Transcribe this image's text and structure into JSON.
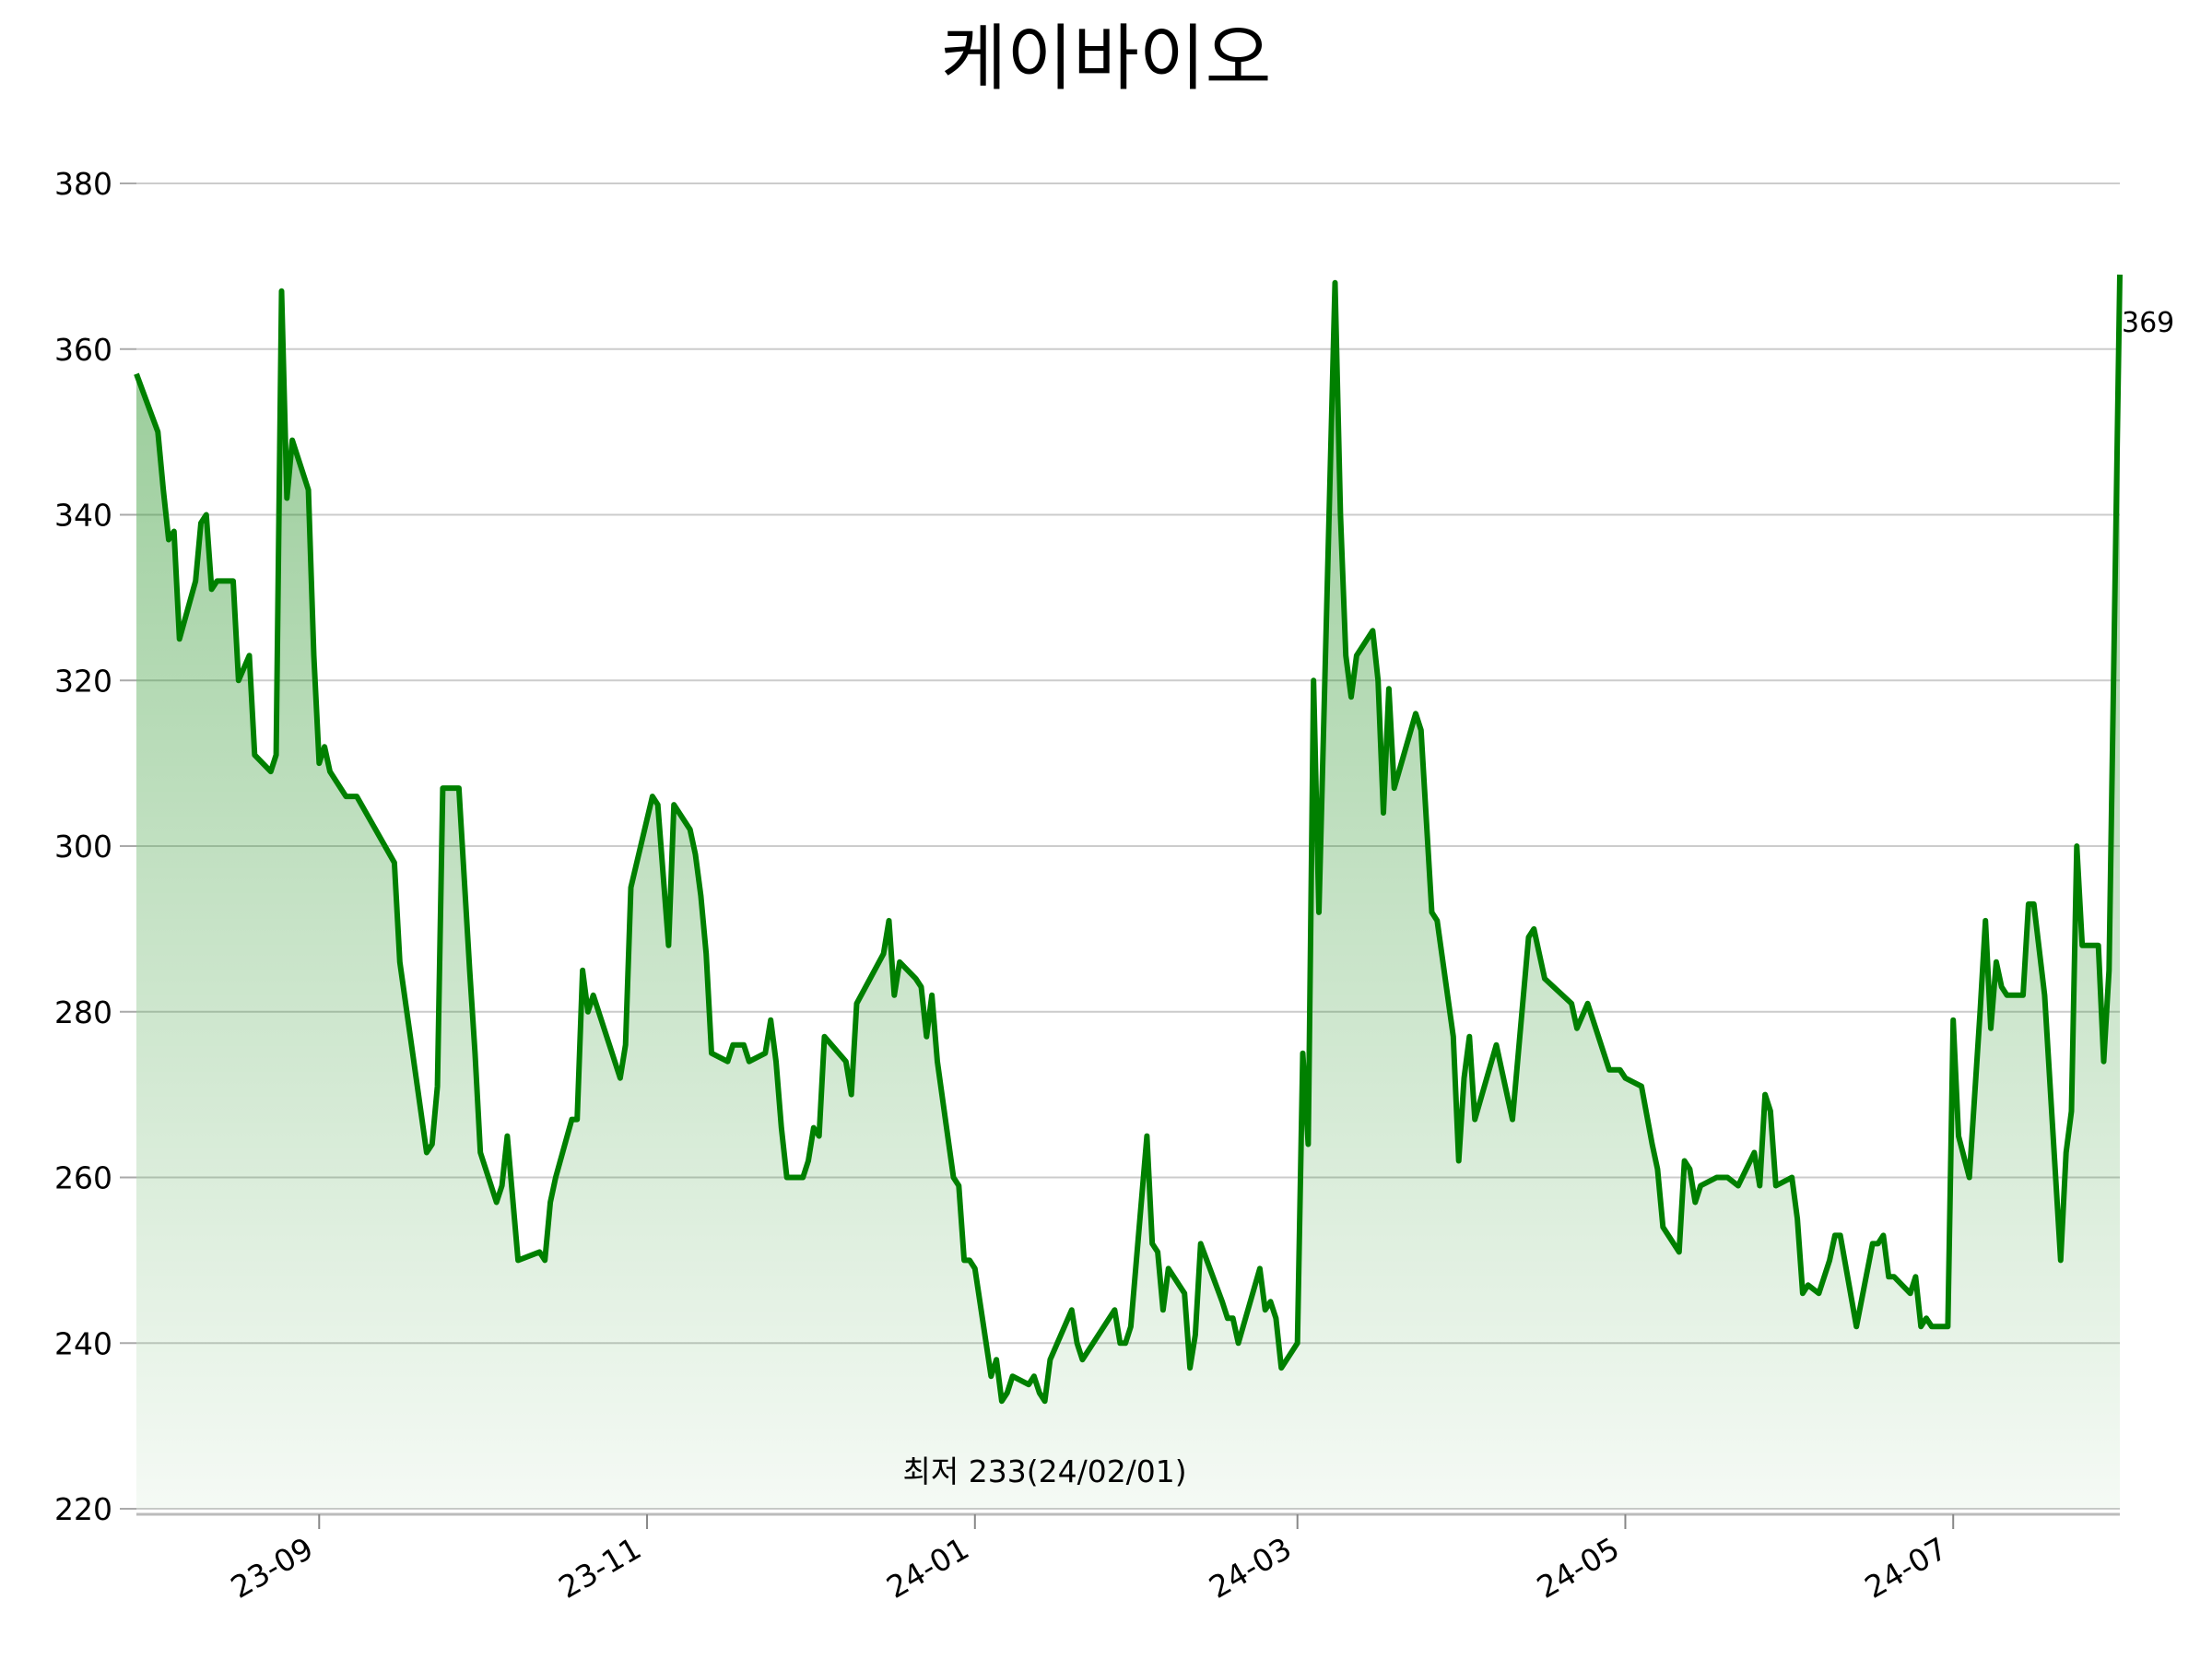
{
  "chart_data": {
    "type": "area-line",
    "title": "케이바이오",
    "x": [
      "23-07-29",
      "23-08-02",
      "23-08-03",
      "23-08-04",
      "23-08-05",
      "23-08-06",
      "23-08-09",
      "23-08-10",
      "23-08-11",
      "23-08-12",
      "23-08-13",
      "23-08-16",
      "23-08-17",
      "23-08-19",
      "23-08-20",
      "23-08-23",
      "23-08-24",
      "23-08-25",
      "23-08-26",
      "23-08-27",
      "23-08-30",
      "23-08-31",
      "23-09-01",
      "23-09-02",
      "23-09-03",
      "23-09-05",
      "23-09-06",
      "23-09-08",
      "23-09-15",
      "23-09-16",
      "23-09-21",
      "23-09-22",
      "23-09-23",
      "23-09-24",
      "23-09-27",
      "23-09-29",
      "23-09-30",
      "23-10-01",
      "23-10-04",
      "23-10-05",
      "23-10-06",
      "23-10-08",
      "23-10-12",
      "23-10-13",
      "23-10-14",
      "23-10-15",
      "23-10-18",
      "23-10-19",
      "23-10-20",
      "23-10-21",
      "23-10-22",
      "23-10-27",
      "23-10-28",
      "23-10-29",
      "23-11-02",
      "23-11-03",
      "23-11-05",
      "23-11-06",
      "23-11-09",
      "23-11-10",
      "23-11-11",
      "23-11-12",
      "23-11-13",
      "23-11-16",
      "23-11-17",
      "23-11-19",
      "23-11-20",
      "23-11-23",
      "23-11-24",
      "23-11-25",
      "23-11-26",
      "23-11-27",
      "23-11-30",
      "23-12-01",
      "23-12-02",
      "23-12-03",
      "23-12-04",
      "23-12-08",
      "23-12-09",
      "23-12-10",
      "23-12-15",
      "23-12-16",
      "23-12-17",
      "23-12-18",
      "23-12-21",
      "23-12-22",
      "23-12-23",
      "23-12-24",
      "23-12-25",
      "23-12-28",
      "23-12-29",
      "23-12-30",
      "23-12-31",
      "24-01-01",
      "24-01-04",
      "24-01-05",
      "24-01-06",
      "24-01-07",
      "24-01-08",
      "24-01-11",
      "24-01-12",
      "24-01-13",
      "24-01-14",
      "24-01-15",
      "24-01-19",
      "24-01-20",
      "24-01-21",
      "24-01-27",
      "24-01-28",
      "24-01-29",
      "24-01-30",
      "24-02-02",
      "24-02-03",
      "24-02-04",
      "24-02-05",
      "24-02-06",
      "24-02-09",
      "24-02-10",
      "24-02-11",
      "24-02-12",
      "24-02-16",
      "24-02-17",
      "24-02-18",
      "24-02-19",
      "24-02-23",
      "24-02-24",
      "24-02-25",
      "24-02-26",
      "24-02-27",
      "24-03-01",
      "24-03-02",
      "24-03-03",
      "24-03-04",
      "24-03-05",
      "24-03-08",
      "24-03-09",
      "24-03-10",
      "24-03-11",
      "24-03-12",
      "24-03-15",
      "24-03-16",
      "24-03-17",
      "24-03-18",
      "24-03-19",
      "24-03-23",
      "24-03-24",
      "24-03-26",
      "24-03-27",
      "24-03-30",
      "24-03-31",
      "24-04-01",
      "24-04-02",
      "24-04-03",
      "24-04-07",
      "24-04-08",
      "24-04-10",
      "24-04-13",
      "24-04-14",
      "24-04-15",
      "24-04-16",
      "24-04-21",
      "24-04-22",
      "24-04-24",
      "24-04-28",
      "24-04-30",
      "24-05-01",
      "24-05-04",
      "24-05-06",
      "24-05-07",
      "24-05-08",
      "24-05-11",
      "24-05-12",
      "24-05-13",
      "24-05-14",
      "24-05-15",
      "24-05-18",
      "24-05-20",
      "24-05-22",
      "24-05-25",
      "24-05-26",
      "24-05-27",
      "24-05-28",
      "24-05-29",
      "24-06-01",
      "24-06-02",
      "24-06-03",
      "24-06-04",
      "24-06-06",
      "24-06-08",
      "24-06-09",
      "24-06-10",
      "24-06-13",
      "24-06-16",
      "24-06-17",
      "24-06-18",
      "24-06-19",
      "24-06-20",
      "24-06-23",
      "24-06-24",
      "24-06-25",
      "24-06-26",
      "24-06-27",
      "24-06-30",
      "24-07-01",
      "24-07-02",
      "24-07-04",
      "24-07-06",
      "24-07-07",
      "24-07-08",
      "24-07-09",
      "24-07-10",
      "24-07-11",
      "24-07-14",
      "24-07-15",
      "24-07-16",
      "24-07-18",
      "24-07-21",
      "24-07-22",
      "24-07-23",
      "24-07-24",
      "24-07-25",
      "24-07-28",
      "24-07-29",
      "24-07-30",
      "24-08-01"
    ],
    "series": [
      {
        "color": "#008000",
        "values": [
          357,
          350,
          343,
          337,
          338,
          325,
          332,
          339,
          340,
          331,
          332,
          332,
          320,
          323,
          311,
          309,
          311,
          367,
          342,
          349,
          343,
          323,
          310,
          312,
          309,
          307,
          306,
          306,
          298,
          286,
          263,
          264,
          271,
          307,
          307,
          285,
          275,
          263,
          257,
          259,
          265,
          250,
          251,
          250,
          257,
          260,
          267,
          267,
          285,
          280,
          282,
          272,
          276,
          295,
          306,
          305,
          288,
          305,
          302,
          299,
          294,
          287,
          275,
          274,
          276,
          276,
          274,
          275,
          279,
          274,
          266,
          260,
          260,
          262,
          266,
          265,
          277,
          274,
          270,
          281,
          287,
          291,
          282,
          286,
          284,
          283,
          277,
          282,
          274,
          260,
          259,
          250,
          250,
          249,
          236,
          238,
          233,
          234,
          236,
          235,
          236,
          234,
          233,
          238,
          244,
          240,
          238,
          244,
          240,
          240,
          242,
          265,
          252,
          251,
          244,
          249,
          246,
          237,
          241,
          252,
          245,
          243,
          243,
          240,
          249,
          244,
          245,
          243,
          237,
          240,
          275,
          264,
          320,
          292,
          368,
          340,
          323,
          318,
          323,
          326,
          320,
          304,
          319,
          307,
          316,
          314,
          292,
          291,
          277,
          262,
          272,
          277,
          267,
          276,
          273,
          267,
          289,
          290,
          287,
          284,
          281,
          278,
          281,
          273,
          273,
          272,
          271,
          264,
          261,
          254,
          251,
          262,
          261,
          257,
          259,
          260,
          260,
          259,
          263,
          259,
          270,
          268,
          259,
          260,
          255,
          246,
          247,
          246,
          250,
          253,
          253,
          242,
          252,
          252,
          253,
          248,
          248,
          246,
          248,
          242,
          243,
          242,
          242,
          279,
          265,
          260,
          280,
          291,
          278,
          286,
          283,
          282,
          282,
          293,
          293,
          282,
          250,
          263,
          268,
          300,
          288,
          288,
          274,
          285,
          369
        ]
      }
    ],
    "xlim": [
      "23-07-29",
      "24-08-01"
    ],
    "xticks": [
      "23-09",
      "23-11",
      "24-01",
      "24-03",
      "24-05",
      "24-07"
    ],
    "ylim": [
      220,
      380
    ],
    "yticks": [
      220,
      240,
      260,
      280,
      300,
      320,
      340,
      360,
      380
    ],
    "grid": true,
    "annotations": [
      {
        "text": "369",
        "color": "#000000"
      },
      {
        "text": "최저 233(24/02/01)",
        "color": "#0000ff"
      }
    ]
  }
}
